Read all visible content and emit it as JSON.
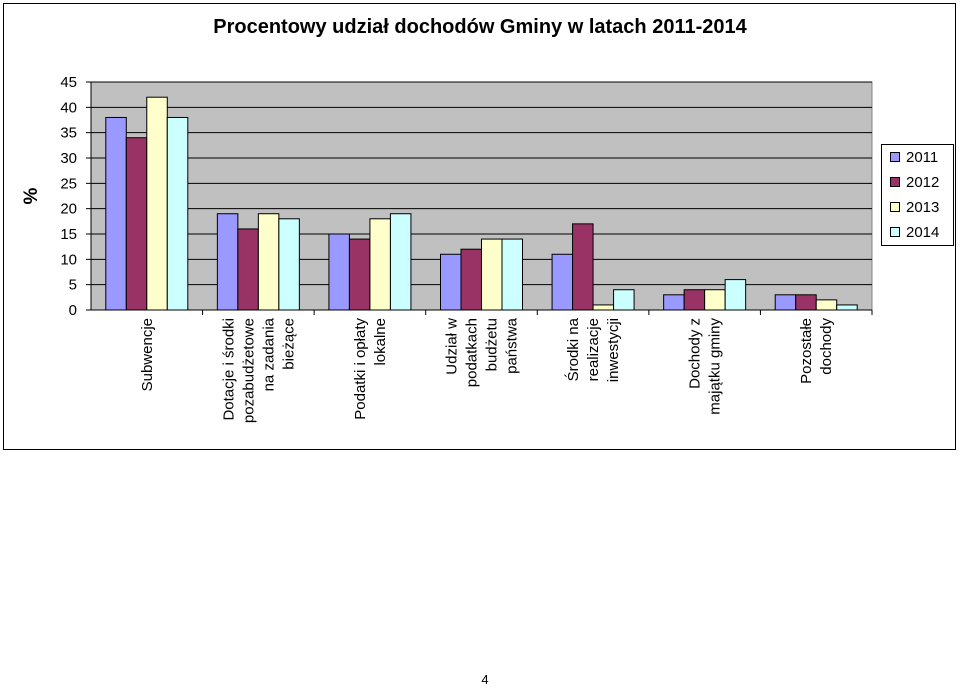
{
  "chart_data": {
    "type": "bar",
    "title": "Procentowy udział dochodów Gminy w latach 2011-2014",
    "ylabel": "%",
    "xlabel": "",
    "ylim": [
      0,
      45
    ],
    "yticks": [
      0,
      5,
      10,
      15,
      20,
      25,
      30,
      35,
      40,
      45
    ],
    "grid": true,
    "legend_position": "right",
    "categories": [
      "Subwencje",
      "Dotacje i środki pozabudżetowe na zadania bieżące",
      "Podatki i opłaty lokalne",
      "Udział w podatkach budżetu państwa",
      "Środki na realizacje inwestycji",
      "Dochody z majątku gminy",
      "Pozostałe dochody"
    ],
    "category_lines": [
      [
        "Subwencje"
      ],
      [
        "Dotacje i środki",
        "pozabudżetowe",
        "na zadania",
        "bieżące"
      ],
      [
        "Podatki i opłaty",
        "lokalne"
      ],
      [
        "Udział w",
        "podatkach",
        "budżetu",
        "państwa"
      ],
      [
        "Środki na",
        "realizacje",
        "inwestycji"
      ],
      [
        "Dochody z",
        "majątku gminy"
      ],
      [
        "Pozostałe",
        "dochody"
      ]
    ],
    "series": [
      {
        "name": "2011",
        "color": "#9999ff",
        "values": [
          38,
          19,
          15,
          11,
          11,
          3,
          3
        ]
      },
      {
        "name": "2012",
        "color": "#993366",
        "values": [
          34,
          16,
          14,
          12,
          17,
          4,
          3
        ]
      },
      {
        "name": "2013",
        "color": "#ffffcc",
        "values": [
          42,
          19,
          18,
          14,
          1,
          4,
          2
        ]
      },
      {
        "name": "2014",
        "color": "#ccffff",
        "values": [
          38,
          18,
          19,
          14,
          4,
          6,
          1
        ]
      }
    ]
  },
  "colors": {
    "plot_background": "#c0c0c0",
    "gridline": "#000000"
  },
  "page": {
    "number": "4"
  }
}
